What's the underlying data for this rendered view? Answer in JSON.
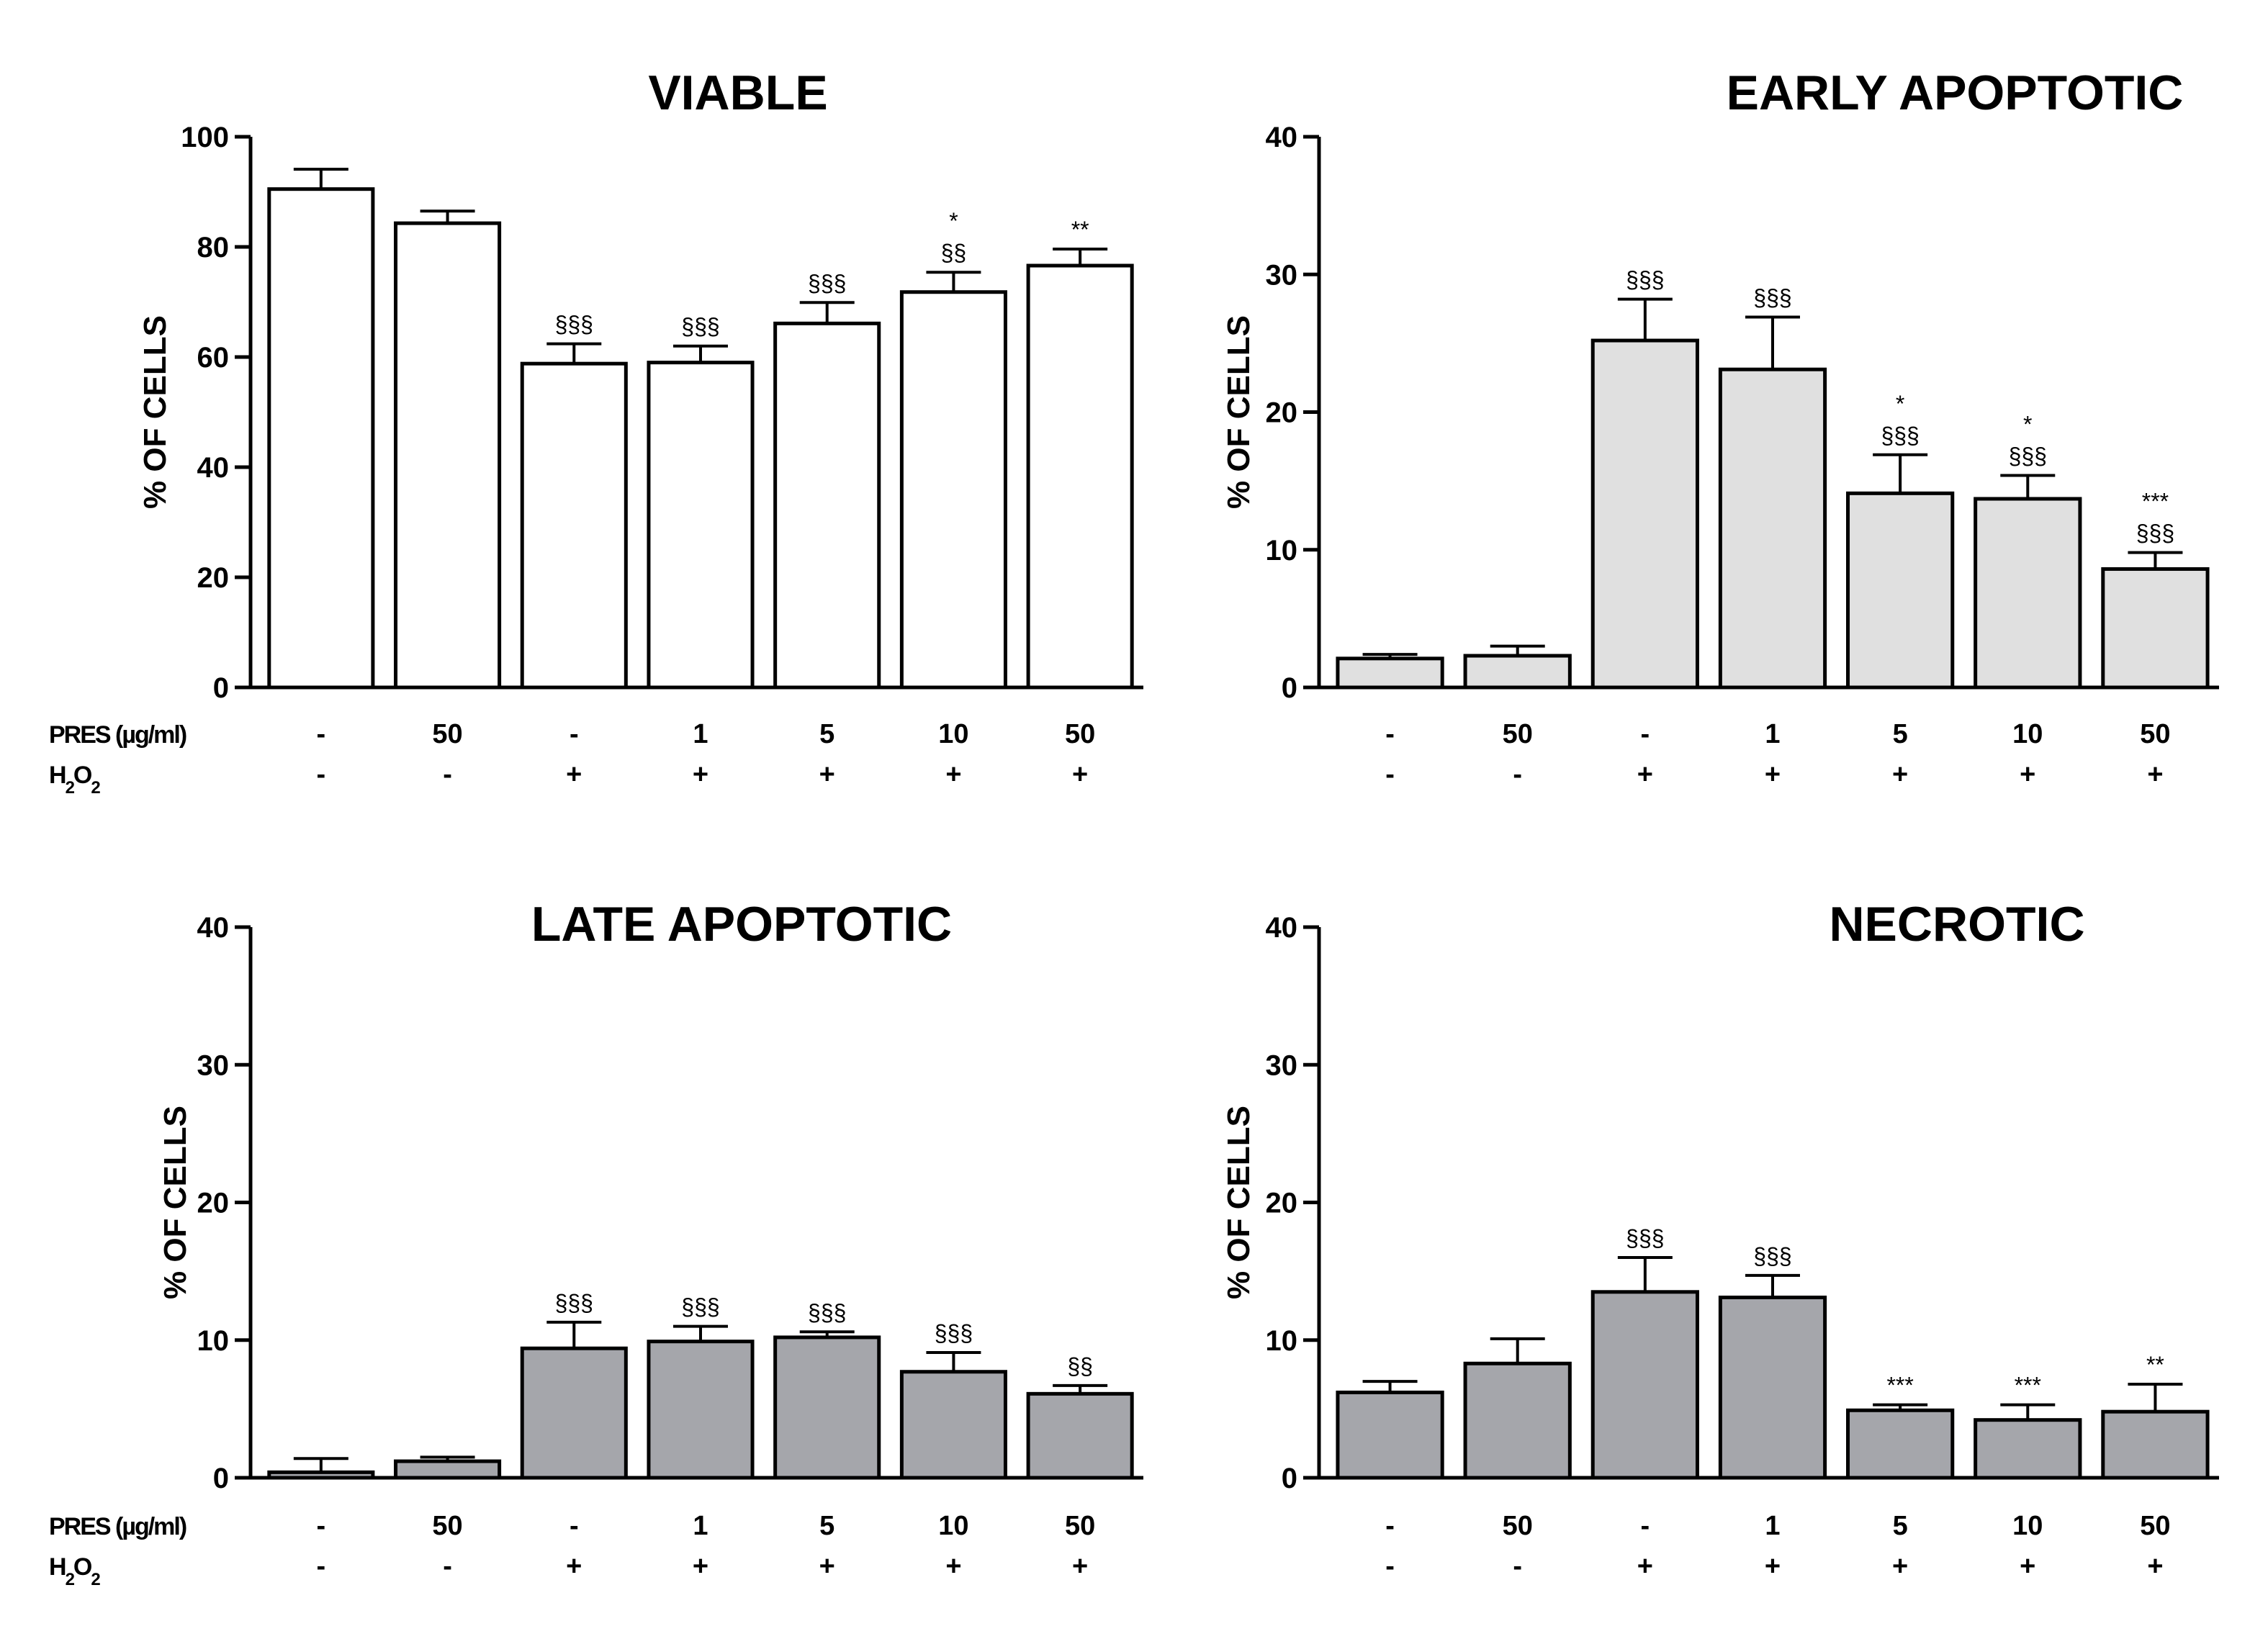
{
  "labels": {
    "pres": "PRES (µg/ml)",
    "h2o2_prefix": "H",
    "h2o2_sub1": "2",
    "h2o2_mid": "O",
    "h2o2_sub2": "2"
  },
  "pres_values": [
    "-",
    "50",
    "-",
    "1",
    "5",
    "10",
    "50"
  ],
  "h2o2_values": [
    "-",
    "-",
    "+",
    "+",
    "+",
    "+",
    "+"
  ],
  "chart_data": [
    {
      "id": "viable",
      "type": "bar",
      "title": "VIABLE",
      "ylabel": "% OF CELLS",
      "ylim": [
        0,
        100
      ],
      "yticks": [
        0,
        20,
        40,
        60,
        80,
        100
      ],
      "bar_color": "#ffffff",
      "categories": [
        "- / -",
        "50 / -",
        "- / +",
        "1 / +",
        "5 / +",
        "10 / +",
        "50 / +"
      ],
      "values": [
        90.5,
        84.3,
        58.8,
        59.0,
        66.1,
        71.8,
        76.6
      ],
      "errors": [
        3.6,
        2.2,
        3.6,
        3.0,
        3.8,
        3.6,
        3.0
      ],
      "annotations": [
        [],
        [],
        [
          "§§§"
        ],
        [
          "§§§"
        ],
        [
          "§§§"
        ],
        [
          "*",
          "§§"
        ],
        [
          "**"
        ]
      ],
      "show_condition_labels": true
    },
    {
      "id": "early",
      "type": "bar",
      "title": "EARLY APOPTOTIC",
      "ylabel": "% OF  CELLS",
      "ylim": [
        0,
        40
      ],
      "yticks": [
        0,
        10,
        20,
        30,
        40
      ],
      "bar_color": "#e0e0e0",
      "categories": [
        "- / -",
        "50 / -",
        "- / +",
        "1 / +",
        "5 / +",
        "10 / +",
        "50 / +"
      ],
      "values": [
        2.1,
        2.3,
        25.2,
        23.1,
        14.1,
        13.7,
        8.6
      ],
      "errors": [
        0.3,
        0.7,
        3.0,
        3.8,
        2.8,
        1.7,
        1.2
      ],
      "annotations": [
        [],
        [],
        [
          "§§§"
        ],
        [
          "§§§"
        ],
        [
          "*",
          "§§§"
        ],
        [
          "*",
          "§§§"
        ],
        [
          "***",
          "§§§"
        ]
      ],
      "show_condition_labels": true
    },
    {
      "id": "late",
      "type": "bar",
      "title": "LATE APOPTOTIC",
      "ylabel": "% OF CELLS",
      "ylim": [
        0,
        40
      ],
      "yticks": [
        0,
        10,
        20,
        30,
        40
      ],
      "bar_color": "#a5a6ab",
      "categories": [
        "- / -",
        "50 / -",
        "- / +",
        "1 / +",
        "5 / +",
        "10 / +",
        "50 / +"
      ],
      "values": [
        0.4,
        1.2,
        9.4,
        9.9,
        10.2,
        7.7,
        6.1
      ],
      "errors": [
        1.0,
        0.3,
        1.9,
        1.1,
        0.4,
        1.4,
        0.6
      ],
      "annotations": [
        [],
        [],
        [
          "§§§"
        ],
        [
          "§§§"
        ],
        [
          "§§§"
        ],
        [
          "§§§"
        ],
        [
          "§§"
        ]
      ],
      "show_condition_labels": true
    },
    {
      "id": "necrotic",
      "type": "bar",
      "title": "NECROTIC",
      "ylabel": "% OF CELLS",
      "ylim": [
        0,
        40
      ],
      "yticks": [
        0,
        10,
        20,
        30,
        40
      ],
      "bar_color": "#a5a6ab",
      "categories": [
        "- / -",
        "50 / -",
        "- / +",
        "1 / +",
        "5 / +",
        "10 / +",
        "50 / +"
      ],
      "values": [
        6.2,
        8.3,
        13.5,
        13.1,
        4.9,
        4.2,
        4.8
      ],
      "errors": [
        0.8,
        1.8,
        2.5,
        1.6,
        0.4,
        1.1,
        2.0
      ],
      "annotations": [
        [],
        [],
        [
          "§§§"
        ],
        [
          "§§§"
        ],
        [
          "***"
        ],
        [
          "***"
        ],
        [
          "**"
        ]
      ],
      "show_condition_labels": true
    }
  ]
}
